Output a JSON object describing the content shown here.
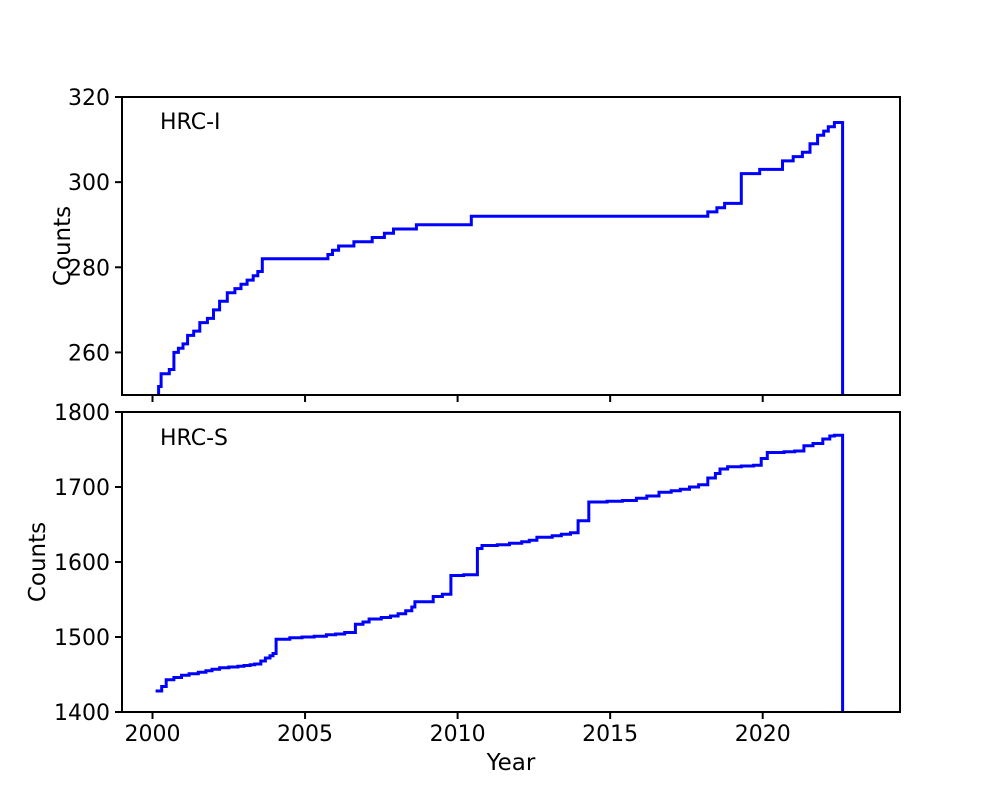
{
  "figure": {
    "xlabel": "Year",
    "background": "#ffffff",
    "axis_color": "#000000",
    "line_color": "#0000ff",
    "x_ticks": [
      2000,
      2005,
      2010,
      2015,
      2020
    ],
    "xlim": [
      1999.0,
      2024.5
    ],
    "grid": false,
    "legend": "none"
  },
  "chart_data": [
    {
      "type": "line",
      "drawstyle": "steps-post",
      "label": "HRC-I",
      "ylabel": "Counts",
      "xlim": [
        1999.0,
        2024.5
      ],
      "ylim": [
        250,
        320
      ],
      "y_ticks": [
        260,
        280,
        300,
        320
      ],
      "line_color": "#0000ff",
      "points": [
        [
          2000.15,
          250
        ],
        [
          2000.2,
          252
        ],
        [
          2000.28,
          255
        ],
        [
          2000.55,
          256
        ],
        [
          2000.7,
          260
        ],
        [
          2000.85,
          261
        ],
        [
          2001.0,
          262
        ],
        [
          2001.15,
          264
        ],
        [
          2001.35,
          265
        ],
        [
          2001.55,
          267
        ],
        [
          2001.8,
          268
        ],
        [
          2002.0,
          270
        ],
        [
          2002.2,
          272
        ],
        [
          2002.45,
          274
        ],
        [
          2002.7,
          275
        ],
        [
          2002.9,
          276
        ],
        [
          2003.1,
          277
        ],
        [
          2003.3,
          278
        ],
        [
          2003.45,
          279
        ],
        [
          2003.6,
          282
        ],
        [
          2005.75,
          283
        ],
        [
          2005.9,
          284
        ],
        [
          2006.1,
          285
        ],
        [
          2006.6,
          286
        ],
        [
          2007.2,
          287
        ],
        [
          2007.6,
          288
        ],
        [
          2007.9,
          289
        ],
        [
          2008.65,
          290
        ],
        [
          2010.45,
          292
        ],
        [
          2018.2,
          293
        ],
        [
          2018.5,
          294
        ],
        [
          2018.75,
          295
        ],
        [
          2019.3,
          302
        ],
        [
          2019.9,
          303
        ],
        [
          2020.65,
          305
        ],
        [
          2021.0,
          306
        ],
        [
          2021.3,
          307
        ],
        [
          2021.55,
          309
        ],
        [
          2021.8,
          311
        ],
        [
          2022.0,
          312
        ],
        [
          2022.15,
          313
        ],
        [
          2022.35,
          314
        ],
        [
          2022.62,
          250
        ]
      ]
    },
    {
      "type": "line",
      "drawstyle": "steps-post",
      "label": "HRC-S",
      "ylabel": "Counts",
      "xlim": [
        1999.0,
        2024.5
      ],
      "ylim": [
        1400,
        1800
      ],
      "y_ticks": [
        1400,
        1500,
        1600,
        1700,
        1800
      ],
      "line_color": "#0000ff",
      "points": [
        [
          2000.1,
          1428
        ],
        [
          2000.3,
          1434
        ],
        [
          2000.45,
          1443
        ],
        [
          2000.7,
          1446
        ],
        [
          2000.95,
          1449
        ],
        [
          2001.2,
          1451
        ],
        [
          2001.5,
          1453
        ],
        [
          2001.75,
          1455
        ],
        [
          2001.95,
          1457
        ],
        [
          2002.2,
          1459
        ],
        [
          2002.5,
          1460
        ],
        [
          2002.8,
          1461
        ],
        [
          2003.0,
          1462
        ],
        [
          2003.2,
          1463
        ],
        [
          2003.35,
          1464
        ],
        [
          2003.55,
          1468
        ],
        [
          2003.7,
          1472
        ],
        [
          2003.85,
          1475
        ],
        [
          2003.95,
          1478
        ],
        [
          2004.05,
          1497
        ],
        [
          2004.5,
          1499
        ],
        [
          2004.9,
          1500
        ],
        [
          2005.3,
          1501
        ],
        [
          2005.7,
          1503
        ],
        [
          2006.0,
          1504
        ],
        [
          2006.3,
          1506
        ],
        [
          2006.65,
          1517
        ],
        [
          2006.9,
          1520
        ],
        [
          2007.1,
          1524
        ],
        [
          2007.5,
          1526
        ],
        [
          2007.8,
          1528
        ],
        [
          2008.05,
          1531
        ],
        [
          2008.3,
          1535
        ],
        [
          2008.5,
          1540
        ],
        [
          2008.6,
          1547
        ],
        [
          2009.2,
          1554
        ],
        [
          2009.5,
          1557
        ],
        [
          2009.78,
          1582
        ],
        [
          2010.2,
          1583
        ],
        [
          2010.65,
          1618
        ],
        [
          2010.8,
          1622
        ],
        [
          2011.3,
          1623
        ],
        [
          2011.7,
          1625
        ],
        [
          2012.1,
          1627
        ],
        [
          2012.35,
          1629
        ],
        [
          2012.6,
          1633
        ],
        [
          2013.1,
          1635
        ],
        [
          2013.4,
          1637
        ],
        [
          2013.7,
          1639
        ],
        [
          2013.95,
          1655
        ],
        [
          2014.3,
          1680
        ],
        [
          2014.9,
          1681
        ],
        [
          2015.4,
          1682
        ],
        [
          2015.86,
          1685
        ],
        [
          2016.2,
          1688
        ],
        [
          2016.6,
          1693
        ],
        [
          2017.0,
          1695
        ],
        [
          2017.3,
          1697
        ],
        [
          2017.6,
          1700
        ],
        [
          2017.9,
          1703
        ],
        [
          2018.2,
          1712
        ],
        [
          2018.45,
          1718
        ],
        [
          2018.6,
          1724
        ],
        [
          2018.85,
          1727
        ],
        [
          2019.3,
          1728
        ],
        [
          2019.7,
          1729
        ],
        [
          2019.95,
          1738
        ],
        [
          2020.15,
          1746
        ],
        [
          2020.7,
          1747
        ],
        [
          2021.05,
          1748
        ],
        [
          2021.35,
          1755
        ],
        [
          2021.65,
          1758
        ],
        [
          2021.97,
          1764
        ],
        [
          2022.2,
          1768
        ],
        [
          2022.35,
          1769
        ],
        [
          2022.62,
          1400
        ]
      ]
    }
  ]
}
